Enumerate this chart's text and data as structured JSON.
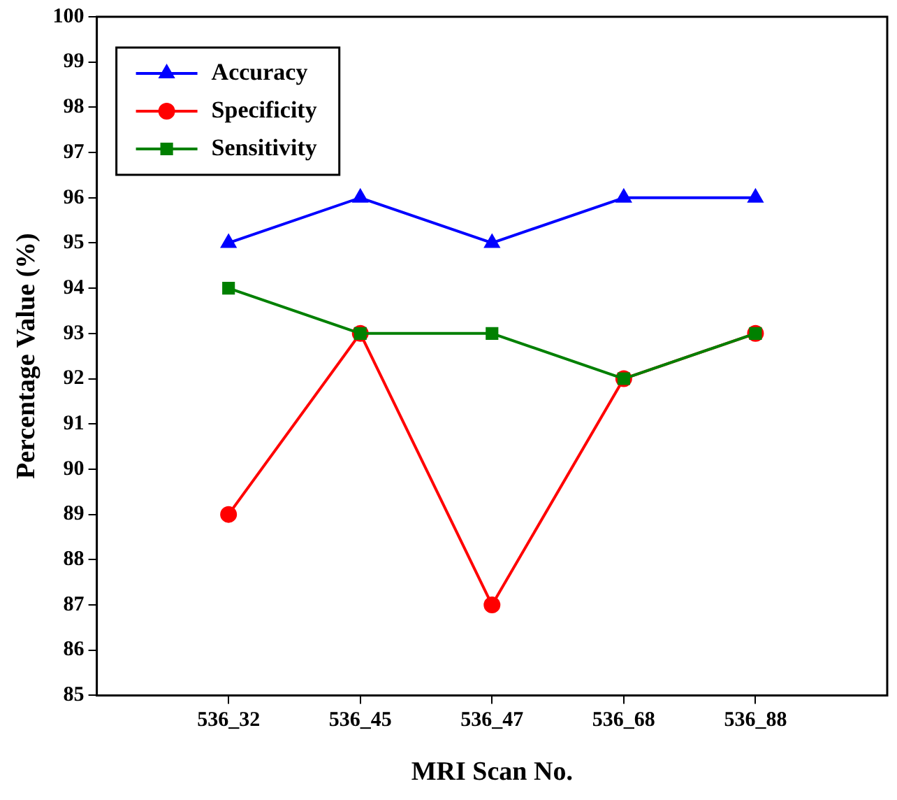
{
  "chart_data": {
    "type": "line",
    "xlabel": "MRI Scan No.",
    "ylabel": "Percentage Value (%)",
    "categories": [
      "536_32",
      "536_45",
      "536_47",
      "536_68",
      "536_88"
    ],
    "series": [
      {
        "name": "Accuracy",
        "color": "#0000ff",
        "marker": "triangle",
        "values": [
          95,
          96,
          95,
          96,
          96
        ]
      },
      {
        "name": "Specificity",
        "color": "#ff0000",
        "marker": "circle",
        "values": [
          89,
          93,
          87,
          92,
          93
        ]
      },
      {
        "name": "Sensitivity",
        "color": "#008000",
        "marker": "square",
        "values": [
          94,
          93,
          93,
          92,
          93
        ]
      }
    ],
    "ylim": [
      85,
      100
    ],
    "yticks": [
      85,
      86,
      87,
      88,
      89,
      90,
      91,
      92,
      93,
      94,
      95,
      96,
      97,
      98,
      99,
      100
    ],
    "grid": false,
    "legend": "top left",
    "line_style": "solid"
  }
}
